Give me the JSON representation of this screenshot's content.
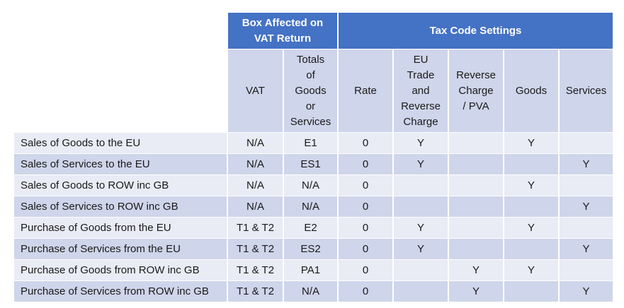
{
  "table": {
    "group_headers": {
      "box_affected": "Box Affected on\nVAT Return",
      "tax_code_settings": "Tax Code Settings"
    },
    "columns": [
      "VAT",
      "Totals\nof\nGoods\nor\nServices",
      "Rate",
      "EU\nTrade\nand\nReverse\nCharge",
      "Reverse\nCharge\n/ PVA",
      "Goods",
      "Services"
    ],
    "rows": [
      {
        "label": "Sales of Goods to the EU",
        "cells": [
          "N/A",
          "E1",
          "0",
          "Y",
          "",
          "Y",
          ""
        ]
      },
      {
        "label": "Sales of Services to the EU",
        "cells": [
          "N/A",
          "ES1",
          "0",
          "Y",
          "",
          "",
          "Y"
        ]
      },
      {
        "label": "Sales of Goods to ROW inc GB",
        "cells": [
          "N/A",
          "N/A",
          "0",
          "",
          "",
          "Y",
          ""
        ]
      },
      {
        "label": "Sales of Services to ROW inc GB",
        "cells": [
          "N/A",
          "N/A",
          "0",
          "",
          "",
          "",
          "Y"
        ]
      },
      {
        "label": "Purchase of Goods from the EU",
        "cells": [
          "T1 & T2",
          "E2",
          "0",
          "Y",
          "",
          "Y",
          ""
        ]
      },
      {
        "label": "Purchase of Services from the EU",
        "cells": [
          "T1 & T2",
          "ES2",
          "0",
          "Y",
          "",
          "",
          "Y"
        ]
      },
      {
        "label": "Purchase of Goods from ROW inc GB",
        "cells": [
          "T1 & T2",
          "PA1",
          "0",
          "",
          "Y",
          "Y",
          ""
        ]
      },
      {
        "label": "Purchase of Services from ROW inc GB",
        "cells": [
          "T1 & T2",
          "N/A",
          "0",
          "",
          "Y",
          "",
          "Y"
        ]
      }
    ]
  },
  "colors": {
    "header": "#4472c4",
    "header_text": "#ffffff",
    "band_dark": "#cfd5ea",
    "band_light": "#e9ebf5"
  }
}
